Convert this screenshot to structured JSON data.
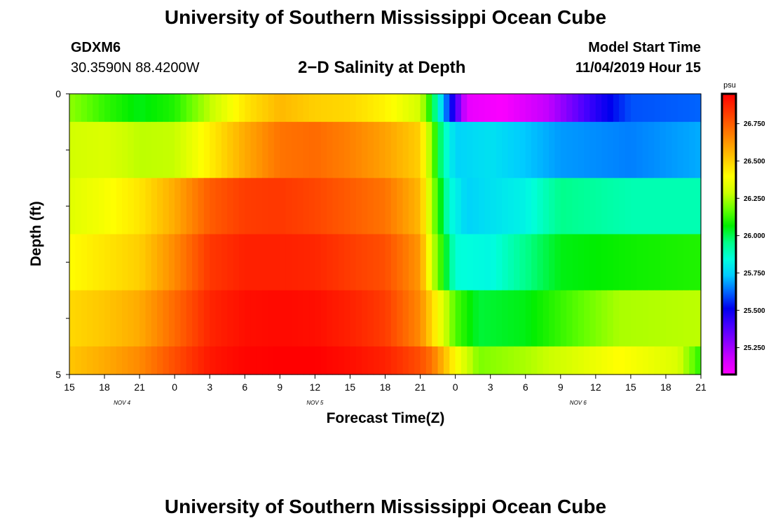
{
  "header": {
    "title": "University of Southern Mississippi Ocean Cube",
    "station": "GDXM6",
    "coordinates": "30.3590N 88.4200W",
    "subtitle": "2−D Salinity at Depth",
    "start_label": "Model Start Time",
    "start_value": "11/04/2019 Hour 15"
  },
  "footer": {
    "title": "University of Southern Mississippi Ocean Cube"
  },
  "chart_data": {
    "type": "heatmap",
    "xlabel": "Forecast Time(Z)",
    "ylabel": "Depth (ft)",
    "x_tick_labels": [
      "15",
      "18",
      "21",
      "0",
      "3",
      "6",
      "9",
      "12",
      "15",
      "18",
      "21",
      "0",
      "3",
      "6",
      "9",
      "12",
      "15",
      "18",
      "21"
    ],
    "date_labels": [
      {
        "text": "NOV  4",
        "at_tick": 1.5
      },
      {
        "text": "NOV  5",
        "at_tick": 7
      },
      {
        "text": "NOV  6",
        "at_tick": 14.5
      }
    ],
    "x_range_hours": [
      0,
      54
    ],
    "y_range": [
      0,
      5
    ],
    "y_tick_labels": [
      "0",
      "5"
    ],
    "depth_levels": 5,
    "colorbar": {
      "unit": "psu",
      "ticks": [
        "26.750",
        "26.500",
        "26.250",
        "26.000",
        "25.750",
        "25.500",
        "25.250"
      ],
      "range": [
        25.07,
        26.95
      ],
      "colors": [
        "#ff00ff",
        "#cc00ff",
        "#8800ff",
        "#4400ff",
        "#0000ee",
        "#0066ff",
        "#00ccff",
        "#00ffdd",
        "#00ff88",
        "#00ee00",
        "#66ff00",
        "#ccff00",
        "#ffff00",
        "#ffcc00",
        "#ff9900",
        "#ff6600",
        "#ff3300",
        "#ff0000"
      ]
    },
    "rows": [
      {
        "depth": "0–0.5",
        "keys": [
          [
            0,
            26.22
          ],
          [
            3,
            26.12
          ],
          [
            6,
            26.05
          ],
          [
            9,
            26.1
          ],
          [
            12,
            26.27
          ],
          [
            15,
            26.45
          ],
          [
            18,
            26.55
          ],
          [
            21,
            26.5
          ],
          [
            24,
            26.48
          ],
          [
            27,
            26.42
          ],
          [
            30,
            26.3
          ],
          [
            31,
            26.05
          ],
          [
            32,
            25.7
          ],
          [
            34,
            25.12
          ],
          [
            37,
            25.08
          ],
          [
            41,
            25.2
          ],
          [
            45,
            25.45
          ],
          [
            48,
            25.6
          ],
          [
            54,
            25.62
          ]
        ]
      },
      {
        "depth": "0.5–1.5",
        "keys": [
          [
            0,
            26.3
          ],
          [
            3,
            26.32
          ],
          [
            6,
            26.27
          ],
          [
            9,
            26.28
          ],
          [
            12,
            26.43
          ],
          [
            15,
            26.58
          ],
          [
            18,
            26.7
          ],
          [
            21,
            26.72
          ],
          [
            24,
            26.67
          ],
          [
            27,
            26.6
          ],
          [
            30,
            26.5
          ],
          [
            31,
            26.2
          ],
          [
            32,
            25.9
          ],
          [
            33,
            25.75
          ],
          [
            36,
            25.78
          ],
          [
            42,
            25.68
          ],
          [
            48,
            25.65
          ],
          [
            54,
            25.7
          ]
        ]
      },
      {
        "depth": "1.5–2.5",
        "keys": [
          [
            0,
            26.33
          ],
          [
            3,
            26.38
          ],
          [
            6,
            26.45
          ],
          [
            9,
            26.58
          ],
          [
            12,
            26.75
          ],
          [
            15,
            26.82
          ],
          [
            18,
            26.83
          ],
          [
            21,
            26.8
          ],
          [
            24,
            26.75
          ],
          [
            27,
            26.7
          ],
          [
            30,
            26.55
          ],
          [
            31,
            26.25
          ],
          [
            32.5,
            25.85
          ],
          [
            34,
            25.75
          ],
          [
            39,
            25.82
          ],
          [
            42,
            25.95
          ],
          [
            48,
            25.9
          ],
          [
            54,
            25.9
          ]
        ]
      },
      {
        "depth": "2.5–3.5",
        "keys": [
          [
            0,
            26.4
          ],
          [
            3,
            26.45
          ],
          [
            6,
            26.5
          ],
          [
            9,
            26.65
          ],
          [
            12,
            26.83
          ],
          [
            15,
            26.88
          ],
          [
            18,
            26.88
          ],
          [
            21,
            26.87
          ],
          [
            24,
            26.82
          ],
          [
            27,
            26.78
          ],
          [
            30,
            26.62
          ],
          [
            31,
            26.3
          ],
          [
            33,
            25.85
          ],
          [
            36,
            25.83
          ],
          [
            39,
            25.95
          ],
          [
            42,
            26.05
          ],
          [
            48,
            26.08
          ],
          [
            54,
            26.1
          ]
        ]
      },
      {
        "depth": "3.5–4.5",
        "keys": [
          [
            0,
            26.48
          ],
          [
            3,
            26.52
          ],
          [
            6,
            26.58
          ],
          [
            9,
            26.72
          ],
          [
            12,
            26.87
          ],
          [
            15,
            26.92
          ],
          [
            18,
            26.93
          ],
          [
            21,
            26.92
          ],
          [
            24,
            26.88
          ],
          [
            27,
            26.82
          ],
          [
            30,
            26.65
          ],
          [
            31,
            26.48
          ],
          [
            33,
            26.15
          ],
          [
            35,
            26.02
          ],
          [
            39,
            26.05
          ],
          [
            43,
            26.15
          ],
          [
            47,
            26.25
          ],
          [
            54,
            26.27
          ]
        ]
      },
      {
        "depth": "4.5–5",
        "keys": [
          [
            0,
            26.52
          ],
          [
            3,
            26.58
          ],
          [
            6,
            26.65
          ],
          [
            9,
            26.78
          ],
          [
            12,
            26.9
          ],
          [
            15,
            26.94
          ],
          [
            18,
            26.95
          ],
          [
            21,
            26.95
          ],
          [
            24,
            26.92
          ],
          [
            27,
            26.88
          ],
          [
            30,
            26.78
          ],
          [
            31,
            26.7
          ],
          [
            33,
            26.4
          ],
          [
            35,
            26.2
          ],
          [
            39,
            26.25
          ],
          [
            43,
            26.32
          ],
          [
            47,
            26.4
          ],
          [
            52,
            26.32
          ],
          [
            54,
            26.1
          ]
        ]
      }
    ]
  }
}
